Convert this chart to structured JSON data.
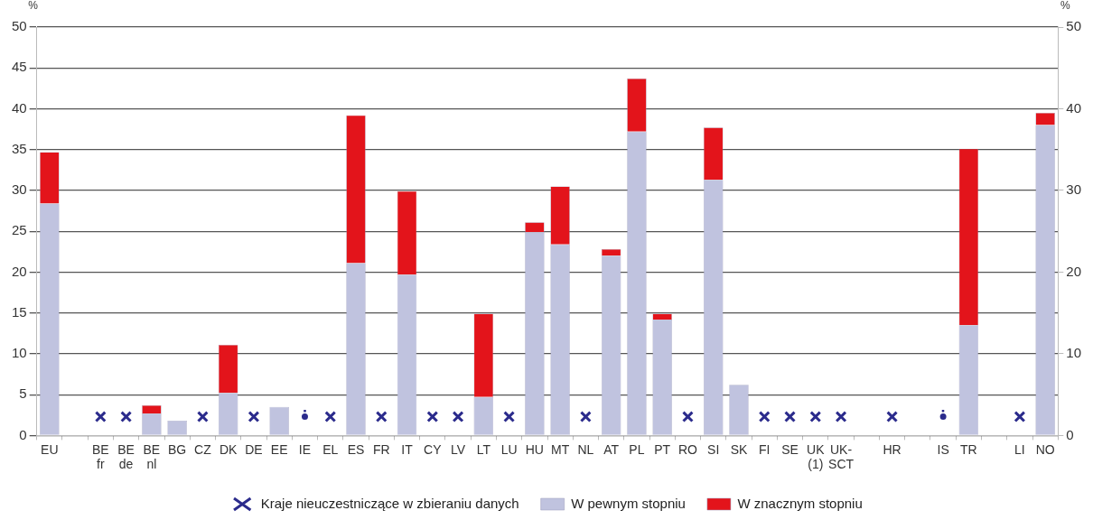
{
  "chart_data": {
    "type": "bar",
    "stacked": true,
    "ylabel": "%",
    "y2label": "%",
    "categories": [
      "EU",
      null,
      "BE\nfr",
      "BE\nde",
      "BE\nnl",
      "BG",
      "CZ",
      "DK",
      "DE",
      "EE",
      "IE",
      "EL",
      "ES",
      "FR",
      "IT",
      "CY",
      "LV",
      "LT",
      "LU",
      "HU",
      "MT",
      "NL",
      "AT",
      "PL",
      "PT",
      "RO",
      "SI",
      "SK",
      "FI",
      "SE",
      "UK\n(1)",
      "UK-\nSCT",
      null,
      "HR",
      null,
      "IS",
      "TR",
      null,
      "LI",
      "NO"
    ],
    "series": [
      {
        "name": "W pewnym stopniu",
        "color": "#c0c3df",
        "values": [
          28.4,
          null,
          null,
          null,
          2.7,
          1.8,
          null,
          5.2,
          null,
          3.5,
          null,
          null,
          21.1,
          null,
          19.7,
          null,
          null,
          4.7,
          null,
          24.9,
          23.4,
          null,
          22.0,
          37.2,
          14.2,
          null,
          31.3,
          6.2,
          null,
          null,
          null,
          null,
          null,
          null,
          null,
          null,
          13.5,
          null,
          null,
          38.0
        ]
      },
      {
        "name": "W znacznym stopniu",
        "color": "#e3141b",
        "values": [
          6.3,
          null,
          null,
          null,
          1.0,
          null,
          null,
          5.9,
          null,
          null,
          null,
          null,
          18.1,
          null,
          10.2,
          null,
          null,
          10.2,
          null,
          1.2,
          7.1,
          null,
          0.8,
          6.5,
          0.7,
          null,
          6.4,
          null,
          null,
          null,
          null,
          null,
          null,
          null,
          null,
          null,
          21.6,
          null,
          null,
          1.5
        ]
      },
      {
        "name": "Kraje nieuczestniczące w zbieraniu danych",
        "type": "scatter",
        "marker": "cross",
        "color": "#2b2b8c",
        "values": [
          null,
          null,
          2.3,
          2.3,
          null,
          null,
          2.3,
          null,
          2.3,
          null,
          null,
          2.3,
          null,
          2.3,
          null,
          2.3,
          2.3,
          null,
          2.3,
          null,
          null,
          2.3,
          null,
          null,
          null,
          2.3,
          null,
          null,
          2.3,
          2.3,
          2.3,
          2.3,
          null,
          2.3,
          null,
          null,
          null,
          null,
          2.3,
          null
        ]
      },
      {
        "type": "scatter",
        "marker": "circle",
        "color": "#2b2b8c",
        "values": [
          null,
          null,
          null,
          null,
          null,
          null,
          null,
          null,
          null,
          null,
          2.3,
          null,
          null,
          null,
          null,
          null,
          null,
          null,
          null,
          null,
          null,
          null,
          null,
          null,
          null,
          null,
          null,
          null,
          null,
          null,
          null,
          null,
          null,
          null,
          null,
          2.3,
          null,
          null,
          null,
          null
        ],
        "value_labels": [
          null,
          null,
          null,
          null,
          null,
          null,
          null,
          null,
          null,
          null,
          ":",
          null,
          null,
          null,
          null,
          null,
          null,
          null,
          null,
          null,
          null,
          null,
          null,
          null,
          null,
          null,
          null,
          null,
          null,
          null,
          null,
          null,
          null,
          null,
          null,
          ":",
          null,
          null,
          null,
          null
        ]
      }
    ],
    "ylim": [
      0,
      50
    ],
    "yticks": [
      0,
      5,
      10,
      15,
      20,
      25,
      30,
      35,
      40,
      45,
      50
    ],
    "y2lim": [
      0,
      50
    ],
    "y2ticks": [
      0,
      10,
      20,
      30,
      40,
      50
    ],
    "grid": "y",
    "legend": "bottom"
  }
}
